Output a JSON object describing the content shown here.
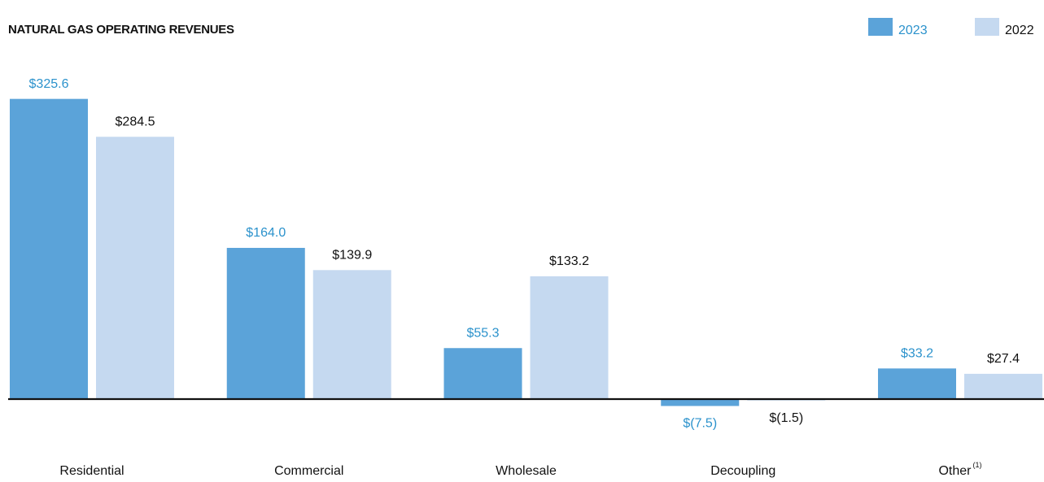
{
  "chart_data": {
    "type": "bar",
    "title": "NATURAL GAS OPERATING REVENUES",
    "categories": [
      "Residential",
      "Commercial",
      "Wholesale",
      "Decoupling",
      "Other"
    ],
    "category_footnotes": [
      null,
      null,
      null,
      null,
      "(1)"
    ],
    "series": [
      {
        "name": "2023",
        "color": "#5ba3d9",
        "label_color": "#2b92cc",
        "values": [
          325.6,
          164.0,
          55.3,
          -7.5,
          33.2
        ],
        "value_labels": [
          "$325.6",
          "$164.0",
          "$55.3",
          "$(7.5)",
          "$33.2"
        ]
      },
      {
        "name": "2022",
        "color": "#c5d9f0",
        "label_color": "#111111",
        "values": [
          284.5,
          139.9,
          133.2,
          -1.5,
          27.4
        ],
        "value_labels": [
          "$284.5",
          "$139.9",
          "$133.2",
          "$(1.5)",
          "$27.4"
        ]
      }
    ],
    "ylim": [
      -30,
      350
    ],
    "legend": "top-right"
  }
}
